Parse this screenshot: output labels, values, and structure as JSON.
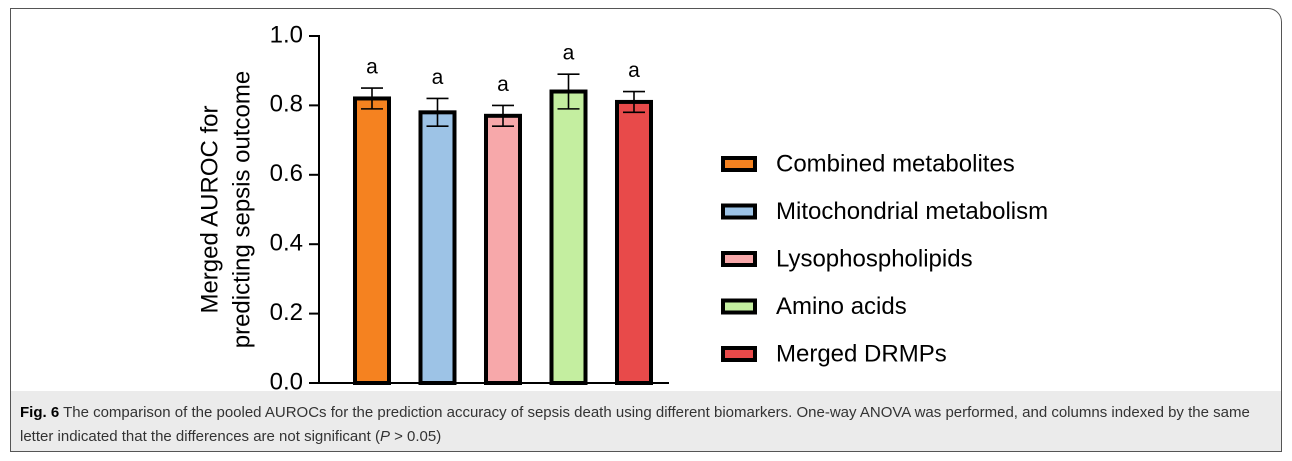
{
  "chart_data": {
    "type": "bar",
    "ylabel": [
      "Merged AUROC for",
      "predicting sepsis outcome"
    ],
    "categories": [
      "Combined metabolites",
      "Mitochondrial metabolism",
      "Lysophospholipids",
      "Amino acids",
      "Merged DRMPs"
    ],
    "values": [
      0.82,
      0.78,
      0.77,
      0.84,
      0.81
    ],
    "errors": [
      0.03,
      0.04,
      0.03,
      0.05,
      0.03
    ],
    "colors": [
      "#f58220",
      "#9dc3e6",
      "#f7a8aa",
      "#c4eea0",
      "#e84a4a"
    ],
    "annotations": [
      "a",
      "a",
      "a",
      "a",
      "a"
    ],
    "ylim": [
      0,
      1
    ],
    "yticks": [
      {
        "value": 0,
        "label": "0.0"
      },
      {
        "value": 0.2,
        "label": "0.2"
      },
      {
        "value": 0.4,
        "label": "0.4"
      },
      {
        "value": 0.6,
        "label": "0.6"
      },
      {
        "value": 0.8,
        "label": "0.8"
      },
      {
        "value": 1,
        "label": "1.0"
      }
    ]
  },
  "caption": {
    "label": "Fig. 6",
    "text": " The comparison of the pooled AUROCs for the prediction accuracy of sepsis death using different biomarkers. One-way ANOVA was performed, and columns indexed by the same letter indicated that the differences are not significant (",
    "italic": "P",
    "end": " > 0.05)"
  }
}
